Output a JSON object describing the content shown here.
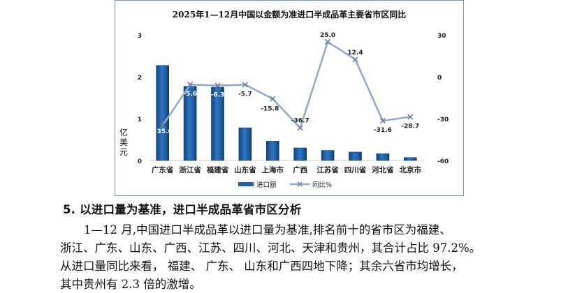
{
  "chart_data": {
    "type": "bar",
    "title": "2025年1—12月中国以金额为准进口半成品革主要省市区同比",
    "categories": [
      "广东省",
      "浙江省",
      "福建省",
      "山东省",
      "上海市",
      "广西",
      "江苏省",
      "四川省",
      "河北省",
      "北京市"
    ],
    "series": [
      {
        "name": "进口额",
        "type": "bar",
        "axis": "left",
        "color": "#1f5fa8",
        "values": [
          2.27,
          1.77,
          1.75,
          0.78,
          0.46,
          0.3,
          0.24,
          0.2,
          0.16,
          0.07
        ]
      },
      {
        "name": "同比%",
        "type": "line",
        "axis": "right",
        "color": "#8fa8cc",
        "values": [
          -35.0,
          -5.6,
          -6.3,
          -5.7,
          -15.8,
          -36.7,
          25.0,
          12.4,
          -31.6,
          -28.7
        ]
      }
    ],
    "data_labels": [
      "-35.0",
      "-5.6",
      "-6.3",
      "-5.7",
      "-15.8",
      "-36.7",
      "25.0",
      "12.4",
      "-31.6",
      "-28.7"
    ],
    "ylabel": "亿美元",
    "ylim": [
      0,
      3
    ],
    "yticks": [
      "0",
      "1",
      "2",
      "3"
    ],
    "y2lim": [
      -60,
      30
    ],
    "y2ticks": [
      "-60",
      "-30",
      "0",
      "30"
    ],
    "legend": {
      "placement": "bottom-center",
      "items": [
        "进口额",
        "同比%"
      ]
    },
    "grid": false
  },
  "section": {
    "heading": "5. 以进口量为基准，进口半成品革省市区分析",
    "lines": [
      "1—12 月,中国进口半成品革以进口量为基准,排名前十的省市区为福建、",
      "浙江、广东、山东、广西、江苏、四川、河北、天津和贵州，其合计占比 97.2%。",
      "从进口量同比来看， 福建、 广东、 山东和广西四地下降；其余六省市均增长，",
      "其中贵州有 2.3 倍的激增。"
    ]
  }
}
